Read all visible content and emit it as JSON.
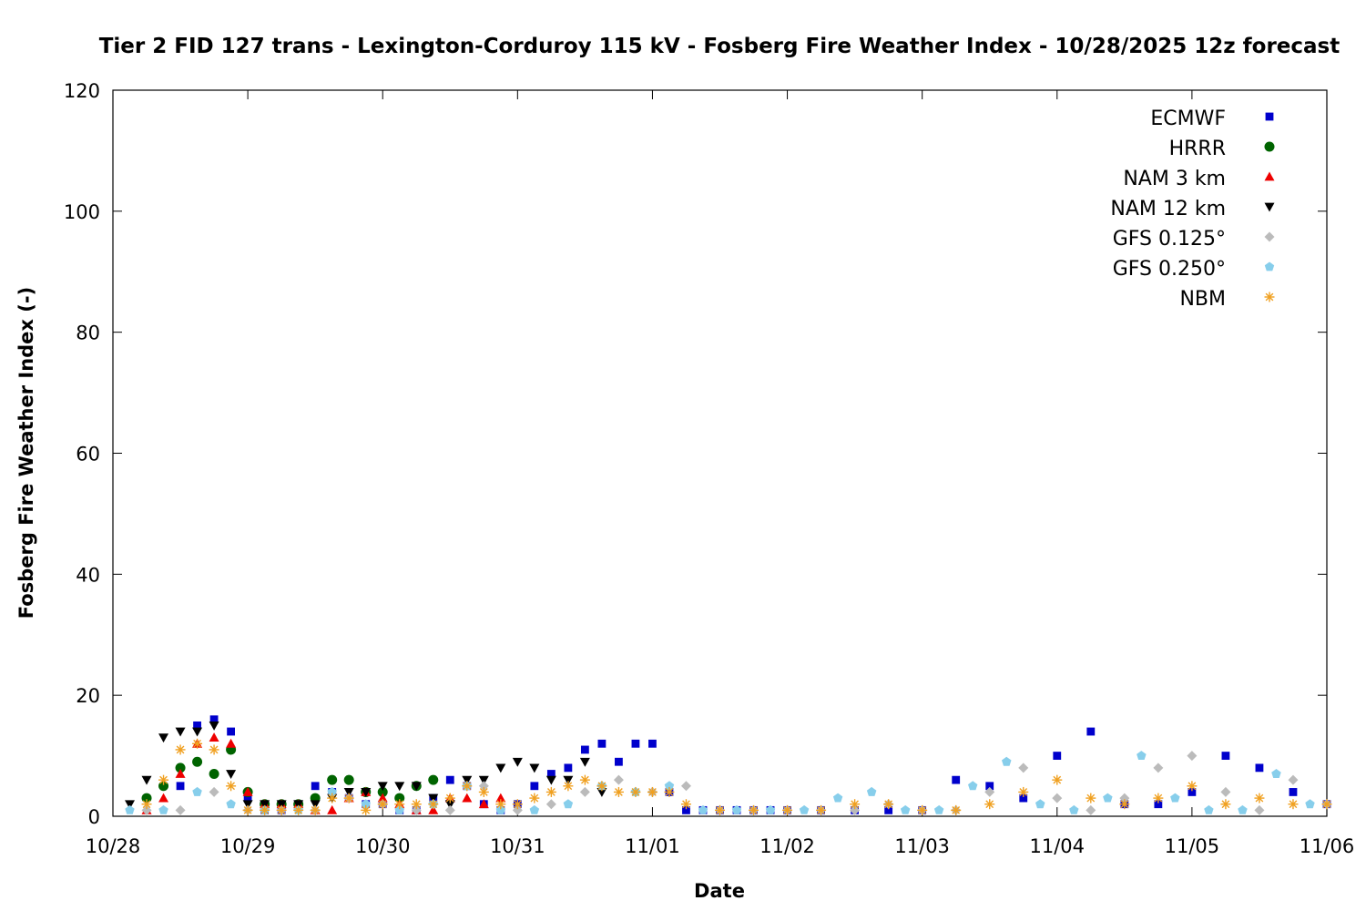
{
  "chart_data": {
    "type": "scatter",
    "title": "Tier 2 FID 127 trans - Lexington-Corduroy 115 kV - Fosberg Fire Weather Index - 10/28/2025 12z forecast",
    "xlabel": "Date",
    "ylabel": "Fosberg Fire Weather Index (-)",
    "xlim": [
      "2025-10-28 00:00",
      "2025-11-06 00:00"
    ],
    "ylim": [
      0,
      120
    ],
    "x_ticks": [
      "10/28",
      "10/29",
      "10/30",
      "10/31",
      "11/01",
      "11/02",
      "11/03",
      "11/04",
      "11/05",
      "11/06"
    ],
    "y_ticks": [
      0,
      20,
      40,
      60,
      80,
      100,
      120
    ],
    "grid": false,
    "legend_position": "top-right",
    "series": [
      {
        "name": "ECMWF",
        "color": "#0000cc",
        "marker": "square",
        "x": [
          "2025-10-28 12:00",
          "2025-10-28 15:00",
          "2025-10-28 18:00",
          "2025-10-28 21:00",
          "2025-10-29 00:00",
          "2025-10-29 03:00",
          "2025-10-29 06:00",
          "2025-10-29 09:00",
          "2025-10-29 12:00",
          "2025-10-29 15:00",
          "2025-10-29 18:00",
          "2025-10-29 21:00",
          "2025-10-30 00:00",
          "2025-10-30 03:00",
          "2025-10-30 06:00",
          "2025-10-30 09:00",
          "2025-10-30 12:00",
          "2025-10-30 15:00",
          "2025-10-30 18:00",
          "2025-10-30 21:00",
          "2025-10-31 00:00",
          "2025-10-31 03:00",
          "2025-10-31 06:00",
          "2025-10-31 09:00",
          "2025-10-31 12:00",
          "2025-10-31 15:00",
          "2025-10-31 18:00",
          "2025-10-31 21:00",
          "2025-11-01 00:00",
          "2025-11-01 03:00",
          "2025-11-01 06:00",
          "2025-11-01 09:00",
          "2025-11-01 12:00",
          "2025-11-01 15:00",
          "2025-11-01 18:00",
          "2025-11-01 21:00",
          "2025-11-02 00:00",
          "2025-11-02 06:00",
          "2025-11-02 12:00",
          "2025-11-02 18:00",
          "2025-11-03 00:00",
          "2025-11-03 06:00",
          "2025-11-03 12:00",
          "2025-11-03 18:00",
          "2025-11-04 00:00",
          "2025-11-04 06:00",
          "2025-11-04 12:00",
          "2025-11-04 18:00",
          "2025-11-05 00:00",
          "2025-11-05 06:00",
          "2025-11-05 12:00",
          "2025-11-05 18:00",
          "2025-11-06 00:00"
        ],
        "y": [
          5,
          15,
          16,
          14,
          3,
          1,
          1,
          2,
          5,
          4,
          3,
          2,
          2,
          1,
          1,
          3,
          6,
          5,
          2,
          1,
          2,
          5,
          7,
          8,
          11,
          12,
          9,
          12,
          12,
          4,
          1,
          1,
          1,
          1,
          1,
          1,
          1,
          1,
          1,
          1,
          1,
          6,
          5,
          3,
          10,
          14,
          2,
          2,
          4,
          10,
          8,
          4,
          2
        ]
      },
      {
        "name": "HRRR",
        "color": "#006400",
        "marker": "circle",
        "x": [
          "2025-10-28 06:00",
          "2025-10-28 09:00",
          "2025-10-28 12:00",
          "2025-10-28 15:00",
          "2025-10-28 18:00",
          "2025-10-28 21:00",
          "2025-10-29 00:00",
          "2025-10-29 03:00",
          "2025-10-29 06:00",
          "2025-10-29 09:00",
          "2025-10-29 12:00",
          "2025-10-29 15:00",
          "2025-10-29 18:00",
          "2025-10-29 21:00",
          "2025-10-30 00:00",
          "2025-10-30 03:00",
          "2025-10-30 06:00",
          "2025-10-30 09:00"
        ],
        "y": [
          3,
          5,
          8,
          9,
          7,
          11,
          4,
          2,
          2,
          2,
          3,
          6,
          6,
          4,
          4,
          3,
          5,
          6
        ]
      },
      {
        "name": "NAM 3 km",
        "color": "#ee0000",
        "marker": "triangle-up",
        "x": [
          "2025-10-28 06:00",
          "2025-10-28 09:00",
          "2025-10-28 12:00",
          "2025-10-28 15:00",
          "2025-10-28 18:00",
          "2025-10-28 21:00",
          "2025-10-29 00:00",
          "2025-10-29 03:00",
          "2025-10-29 06:00",
          "2025-10-29 09:00",
          "2025-10-29 12:00",
          "2025-10-29 15:00",
          "2025-10-29 18:00",
          "2025-10-29 21:00",
          "2025-10-30 00:00",
          "2025-10-30 03:00",
          "2025-10-30 06:00",
          "2025-10-30 09:00",
          "2025-10-30 12:00",
          "2025-10-30 15:00",
          "2025-10-30 18:00",
          "2025-10-30 21:00"
        ],
        "y": [
          1,
          3,
          7,
          12,
          13,
          12,
          4,
          2,
          2,
          2,
          1,
          1,
          3,
          4,
          3,
          2,
          1,
          1,
          3,
          3,
          2,
          3
        ]
      },
      {
        "name": "NAM 12 km",
        "color": "#000000",
        "marker": "triangle-down",
        "x": [
          "2025-10-28 03:00",
          "2025-10-28 06:00",
          "2025-10-28 09:00",
          "2025-10-28 12:00",
          "2025-10-28 15:00",
          "2025-10-28 18:00",
          "2025-10-28 21:00",
          "2025-10-29 00:00",
          "2025-10-29 03:00",
          "2025-10-29 06:00",
          "2025-10-29 09:00",
          "2025-10-29 12:00",
          "2025-10-29 15:00",
          "2025-10-29 18:00",
          "2025-10-29 21:00",
          "2025-10-30 00:00",
          "2025-10-30 03:00",
          "2025-10-30 06:00",
          "2025-10-30 09:00",
          "2025-10-30 12:00",
          "2025-10-30 15:00",
          "2025-10-30 18:00",
          "2025-10-30 21:00",
          "2025-10-31 00:00",
          "2025-10-31 03:00",
          "2025-10-31 06:00",
          "2025-10-31 09:00",
          "2025-10-31 12:00",
          "2025-10-31 15:00"
        ],
        "y": [
          2,
          6,
          13,
          14,
          14,
          15,
          7,
          2,
          2,
          2,
          2,
          2,
          3,
          4,
          4,
          5,
          5,
          5,
          3,
          2,
          6,
          6,
          8,
          9,
          8,
          6,
          6,
          9,
          4
        ]
      },
      {
        "name": "GFS 0.125°",
        "color": "#bbbbbb",
        "marker": "diamond",
        "x": [
          "2025-10-28 06:00",
          "2025-10-28 12:00",
          "2025-10-28 18:00",
          "2025-10-29 00:00",
          "2025-10-29 06:00",
          "2025-10-29 12:00",
          "2025-10-29 18:00",
          "2025-10-30 00:00",
          "2025-10-30 06:00",
          "2025-10-30 12:00",
          "2025-10-30 18:00",
          "2025-10-31 00:00",
          "2025-10-31 06:00",
          "2025-10-31 12:00",
          "2025-10-31 18:00",
          "2025-11-01 00:00",
          "2025-11-01 06:00",
          "2025-11-01 12:00",
          "2025-11-01 18:00",
          "2025-11-02 00:00",
          "2025-11-02 06:00",
          "2025-11-02 12:00",
          "2025-11-02 18:00",
          "2025-11-03 00:00",
          "2025-11-03 06:00",
          "2025-11-03 12:00",
          "2025-11-03 18:00",
          "2025-11-04 00:00",
          "2025-11-04 06:00",
          "2025-11-04 12:00",
          "2025-11-04 18:00",
          "2025-11-05 00:00",
          "2025-11-05 06:00",
          "2025-11-05 12:00",
          "2025-11-05 18:00",
          "2025-11-06 00:00"
        ],
        "y": [
          1,
          1,
          4,
          1,
          1,
          1,
          3,
          2,
          1,
          1,
          5,
          1,
          2,
          4,
          6,
          4,
          5,
          1,
          1,
          1,
          1,
          1,
          2,
          1,
          1,
          4,
          8,
          3,
          1,
          3,
          8,
          10,
          4,
          1,
          6,
          2
        ]
      },
      {
        "name": "GFS 0.250°",
        "color": "#87ceeb",
        "marker": "pentagon",
        "x": [
          "2025-10-28 03:00",
          "2025-10-28 09:00",
          "2025-10-28 15:00",
          "2025-10-28 21:00",
          "2025-10-29 03:00",
          "2025-10-29 09:00",
          "2025-10-29 15:00",
          "2025-10-29 21:00",
          "2025-10-30 03:00",
          "2025-10-30 09:00",
          "2025-10-30 15:00",
          "2025-10-30 21:00",
          "2025-10-31 03:00",
          "2025-10-31 09:00",
          "2025-10-31 15:00",
          "2025-10-31 21:00",
          "2025-11-01 03:00",
          "2025-11-01 09:00",
          "2025-11-01 15:00",
          "2025-11-01 21:00",
          "2025-11-02 03:00",
          "2025-11-02 09:00",
          "2025-11-02 15:00",
          "2025-11-02 21:00",
          "2025-11-03 03:00",
          "2025-11-03 09:00",
          "2025-11-03 15:00",
          "2025-11-03 21:00",
          "2025-11-04 03:00",
          "2025-11-04 09:00",
          "2025-11-04 15:00",
          "2025-11-04 21:00",
          "2025-11-05 03:00",
          "2025-11-05 09:00",
          "2025-11-05 15:00",
          "2025-11-05 21:00"
        ],
        "y": [
          1,
          1,
          4,
          2,
          1,
          1,
          4,
          2,
          1,
          2,
          5,
          1,
          1,
          2,
          5,
          4,
          5,
          1,
          1,
          1,
          1,
          3,
          4,
          1,
          1,
          5,
          9,
          2,
          1,
          3,
          10,
          3,
          1,
          1,
          7,
          2
        ]
      },
      {
        "name": "NBM",
        "color": "#f0a020",
        "marker": "asterisk",
        "x": [
          "2025-10-28 06:00",
          "2025-10-28 09:00",
          "2025-10-28 12:00",
          "2025-10-28 15:00",
          "2025-10-28 18:00",
          "2025-10-28 21:00",
          "2025-10-29 00:00",
          "2025-10-29 03:00",
          "2025-10-29 06:00",
          "2025-10-29 09:00",
          "2025-10-29 12:00",
          "2025-10-29 15:00",
          "2025-10-29 18:00",
          "2025-10-29 21:00",
          "2025-10-30 00:00",
          "2025-10-30 03:00",
          "2025-10-30 06:00",
          "2025-10-30 09:00",
          "2025-10-30 12:00",
          "2025-10-30 15:00",
          "2025-10-30 18:00",
          "2025-10-30 21:00",
          "2025-10-31 00:00",
          "2025-10-31 03:00",
          "2025-10-31 06:00",
          "2025-10-31 09:00",
          "2025-10-31 12:00",
          "2025-10-31 15:00",
          "2025-10-31 18:00",
          "2025-10-31 21:00",
          "2025-11-01 00:00",
          "2025-11-01 03:00",
          "2025-11-01 06:00",
          "2025-11-01 12:00",
          "2025-11-01 18:00",
          "2025-11-02 00:00",
          "2025-11-02 06:00",
          "2025-11-02 12:00",
          "2025-11-02 18:00",
          "2025-11-03 00:00",
          "2025-11-03 06:00",
          "2025-11-03 12:00",
          "2025-11-03 18:00",
          "2025-11-04 00:00",
          "2025-11-04 06:00",
          "2025-11-04 12:00",
          "2025-11-04 18:00",
          "2025-11-05 00:00",
          "2025-11-05 06:00",
          "2025-11-05 12:00",
          "2025-11-05 18:00",
          "2025-11-06 00:00"
        ],
        "y": [
          2,
          6,
          11,
          12,
          11,
          5,
          1,
          1,
          1,
          1,
          1,
          3,
          3,
          1,
          2,
          2,
          2,
          2,
          3,
          5,
          4,
          2,
          2,
          3,
          4,
          5,
          6,
          5,
          4,
          4,
          4,
          4,
          2,
          1,
          1,
          1,
          1,
          2,
          2,
          1,
          1,
          2,
          4,
          6,
          3,
          2,
          3,
          5,
          2,
          3,
          2,
          2
        ]
      }
    ]
  }
}
